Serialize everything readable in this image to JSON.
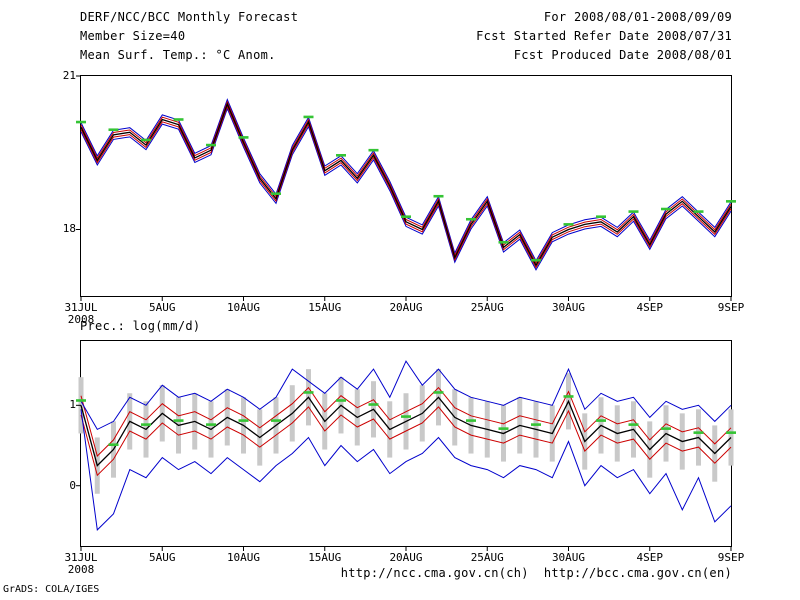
{
  "header": {
    "title": "DERF/NCC/BCC Monthly Forecast",
    "member_size": "Member Size=40",
    "for_range": "For 2008/08/01-2008/09/09",
    "refer_date": "Fcst Started Refer Date 2008/07/31",
    "produced_date": "Fcst Produced Date 2008/08/01"
  },
  "footer": {
    "urls": "http://ncc.cma.gov.cn(ch)  http://bcc.cma.gov.cn(en)",
    "credit": "GrADS: COLA/IGES"
  },
  "colors": {
    "mean": "#000000",
    "red": "#cc0000",
    "blue": "#0000cc",
    "green": "#35c435",
    "gray_bar": "#c9c9c9"
  },
  "chart_data": [
    {
      "type": "line",
      "title": "Mean Surf. Temp.: °C Anom.",
      "x_days": 40,
      "x_ticks": [
        {
          "pos": 0,
          "label": "31JUL",
          "sub": "2008"
        },
        {
          "pos": 5,
          "label": "5AUG"
        },
        {
          "pos": 10,
          "label": "10AUG"
        },
        {
          "pos": 15,
          "label": "15AUG"
        },
        {
          "pos": 20,
          "label": "20AUG"
        },
        {
          "pos": 25,
          "label": "25AUG"
        },
        {
          "pos": 30,
          "label": "30AUG"
        },
        {
          "pos": 35,
          "label": "4SEP"
        },
        {
          "pos": 40,
          "label": "9SEP"
        }
      ],
      "ylim": [
        16.7,
        21
      ],
      "y_ticks": [
        {
          "val": 21,
          "label": "21"
        },
        {
          "val": 18,
          "label": "18"
        }
      ],
      "mean_color": "#000000",
      "mean": [
        20.0,
        19.35,
        19.85,
        19.9,
        19.65,
        20.15,
        20.05,
        19.4,
        19.55,
        20.45,
        19.7,
        19.0,
        18.6,
        19.55,
        20.1,
        19.15,
        19.35,
        19.0,
        19.45,
        18.85,
        18.15,
        18.0,
        18.55,
        17.45,
        18.1,
        18.55,
        17.65,
        17.9,
        17.3,
        17.85,
        18.0,
        18.1,
        18.15,
        17.95,
        18.25,
        17.7,
        18.3,
        18.55,
        18.25,
        17.95,
        18.45
      ],
      "band_offsets": [
        {
          "off": 0.09,
          "color": "#0000cc"
        },
        {
          "off": -0.09,
          "color": "#0000cc"
        },
        {
          "off": 0.045,
          "color": "#cc0000"
        },
        {
          "off": -0.045,
          "color": "#cc0000"
        }
      ],
      "green_ticks": {
        "every": 2,
        "offset": 0.1,
        "color": "#35c435",
        "half_w": 5
      }
    },
    {
      "type": "line",
      "title": "Prec.: log(mm/d)",
      "x_days": 40,
      "x_ticks": [
        {
          "pos": 0,
          "label": "31JUL",
          "sub": "2008"
        },
        {
          "pos": 5,
          "label": "5AUG"
        },
        {
          "pos": 10,
          "label": "10AUG"
        },
        {
          "pos": 15,
          "label": "15AUG"
        },
        {
          "pos": 20,
          "label": "20AUG"
        },
        {
          "pos": 25,
          "label": "25AUG"
        },
        {
          "pos": 30,
          "label": "30AUG"
        },
        {
          "pos": 35,
          "label": "4SEP"
        },
        {
          "pos": 40,
          "label": "9SEP"
        }
      ],
      "ylim": [
        -0.75,
        1.8
      ],
      "y_ticks": [
        {
          "val": 1,
          "label": "1"
        },
        {
          "val": 0,
          "label": "0"
        }
      ],
      "mean_color": "#000000",
      "mean": [
        1.0,
        0.25,
        0.45,
        0.8,
        0.7,
        0.9,
        0.75,
        0.8,
        0.7,
        0.85,
        0.75,
        0.6,
        0.75,
        0.9,
        1.1,
        0.8,
        1.0,
        0.85,
        0.95,
        0.7,
        0.8,
        0.9,
        1.1,
        0.85,
        0.75,
        0.7,
        0.65,
        0.75,
        0.7,
        0.65,
        1.05,
        0.55,
        0.75,
        0.65,
        0.7,
        0.45,
        0.65,
        0.55,
        0.6,
        0.4,
        0.6
      ],
      "band_offsets": [
        {
          "off": 0.12,
          "color": "#cc0000"
        },
        {
          "off": -0.12,
          "color": "#cc0000"
        }
      ],
      "extra_series": [
        {
          "name": "ensemble-max",
          "color": "#0000cc",
          "values": [
            1.05,
            0.7,
            0.8,
            1.1,
            1.0,
            1.25,
            1.1,
            1.15,
            1.05,
            1.2,
            1.1,
            0.95,
            1.1,
            1.45,
            1.3,
            1.15,
            1.35,
            1.2,
            1.45,
            1.1,
            1.55,
            1.25,
            1.45,
            1.2,
            1.1,
            1.05,
            1.0,
            1.1,
            1.05,
            1.0,
            1.45,
            0.95,
            1.15,
            1.05,
            1.1,
            0.85,
            1.05,
            0.95,
            1.0,
            0.8,
            1.0
          ]
        },
        {
          "name": "ensemble-min",
          "color": "#0000cc",
          "values": [
            0.95,
            -0.55,
            -0.35,
            0.2,
            0.1,
            0.35,
            0.2,
            0.3,
            0.15,
            0.35,
            0.2,
            0.05,
            0.25,
            0.4,
            0.6,
            0.25,
            0.5,
            0.3,
            0.45,
            0.15,
            0.3,
            0.4,
            0.6,
            0.35,
            0.25,
            0.2,
            0.1,
            0.25,
            0.2,
            0.1,
            0.55,
            0.0,
            0.25,
            0.1,
            0.2,
            -0.1,
            0.15,
            -0.3,
            0.1,
            -0.45,
            -0.25
          ]
        }
      ],
      "bars": {
        "half": 0.35,
        "width": 5,
        "color": "#c9c9c9"
      },
      "green_ticks": {
        "every": 2,
        "offset": 0.06,
        "color": "#35c435",
        "half_w": 5
      }
    }
  ]
}
